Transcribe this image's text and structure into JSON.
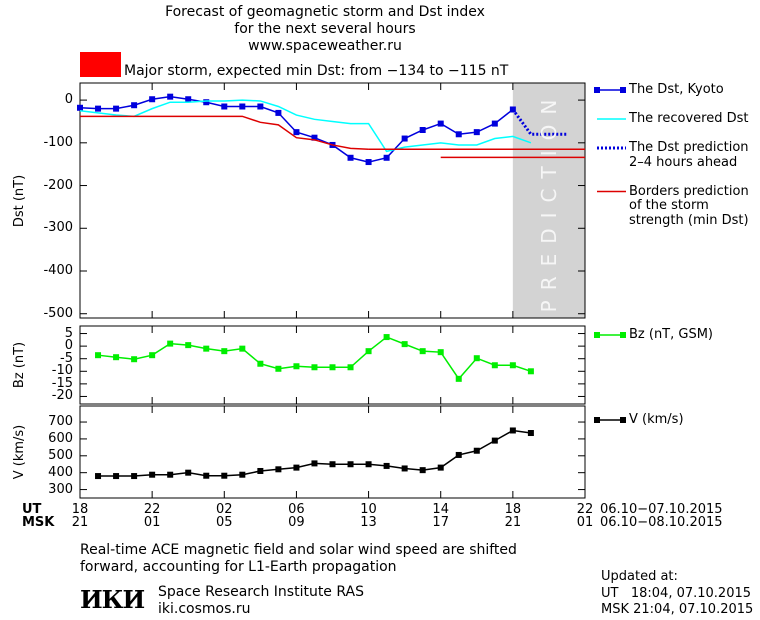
{
  "header": {
    "title_lines": [
      "Forecast of geomagnetic storm and Dst index",
      "for the next several hours",
      "www.spaceweather.ru"
    ]
  },
  "storm_box": {
    "color": "#ff0000",
    "label": "Major storm, expected min Dst: from −134 to −115 nT"
  },
  "chart_data": [
    {
      "type": "line",
      "ylabel": "Dst (nT)",
      "xlim": [
        0,
        28
      ],
      "xticks": [
        0,
        4,
        8,
        12,
        16,
        20,
        24,
        28
      ],
      "ylim": [
        -510,
        40
      ],
      "yticks": [
        0,
        -100,
        -200,
        -300,
        -400,
        -500
      ],
      "prediction": {
        "label": "PREDICTION",
        "range": [
          24,
          28
        ],
        "color": "#d3d3d3"
      },
      "series": [
        {
          "name": "The Dst, Kyoto",
          "color": "#0000dd",
          "marker": "square",
          "x": [
            0,
            1,
            2,
            3,
            4,
            5,
            6,
            7,
            8,
            9,
            10,
            11,
            12,
            13,
            14,
            15,
            16,
            17,
            18,
            19,
            20,
            21,
            22,
            23,
            24
          ],
          "values": [
            -18,
            -20,
            -20,
            -12,
            2,
            8,
            2,
            -5,
            -15,
            -15,
            -15,
            -30,
            -75,
            -88,
            -105,
            -135,
            -145,
            -135,
            -90,
            -70,
            -55,
            -80,
            -75,
            -55,
            -22
          ]
        },
        {
          "name": "The recovered Dst",
          "color": "#00ffff",
          "x": [
            0,
            1,
            2,
            3,
            4,
            5,
            6,
            7,
            8,
            9,
            10,
            11,
            12,
            13,
            14,
            15,
            16,
            17,
            18,
            19,
            20,
            21,
            22,
            23,
            24,
            25
          ],
          "values": [
            -25,
            -30,
            -35,
            -38,
            -20,
            -5,
            -5,
            -2,
            -2,
            0,
            -2,
            -15,
            -35,
            -45,
            -50,
            -55,
            -55,
            -120,
            -110,
            -105,
            -100,
            -105,
            -105,
            -90,
            -85,
            -100
          ]
        },
        {
          "name": "The Dst prediction\n2–4 hours ahead",
          "color": "#0000dd",
          "dash": true,
          "x": [
            24,
            25,
            27
          ],
          "values": [
            -22,
            -80,
            -80
          ]
        },
        {
          "name": "Borders prediction\nof the storm\nstrength (min Dst)",
          "color": "#dd0000",
          "pieces": [
            {
              "x": [
                0,
                9,
                10,
                11,
                12,
                13,
                14,
                15,
                16
              ],
              "values": [
                -38,
                -38,
                -52,
                -58,
                -88,
                -93,
                -105,
                -113,
                -115
              ]
            },
            {
              "x": [
                16,
                28
              ],
              "values": [
                -115,
                -115
              ]
            },
            {
              "x": [
                20,
                28
              ],
              "values": [
                -134,
                -134
              ]
            }
          ]
        }
      ]
    },
    {
      "type": "line",
      "ylabel": "Bz (nT)",
      "xlim": [
        0,
        28
      ],
      "xticks": [
        0,
        4,
        8,
        12,
        16,
        20,
        24,
        28
      ],
      "ylim": [
        -23,
        8
      ],
      "yticks": [
        5,
        0,
        -5,
        -10,
        -15,
        -20
      ],
      "series": [
        {
          "name": "Bz (nT, GSM)",
          "color": "#00ee00",
          "marker": "square",
          "x": [
            1,
            2,
            3,
            4,
            5,
            6,
            7,
            8,
            9,
            10,
            11,
            12,
            13,
            14,
            15,
            16,
            17,
            18,
            19,
            20,
            21,
            22,
            23,
            24,
            25
          ],
          "values": [
            -3.6,
            -4.4,
            -5.2,
            -3.6,
            1,
            0.4,
            -1,
            -2,
            -1,
            -7,
            -9,
            -8,
            -8.4,
            -8.4,
            -8.4,
            -2,
            3.6,
            0.8,
            -2,
            -2.4,
            -13,
            -4.8,
            -7.6,
            -7.6,
            -10
          ]
        }
      ]
    },
    {
      "type": "line",
      "ylabel": "V (km/s)",
      "xlim": [
        0,
        28
      ],
      "xticks": [
        {
          "value": 0,
          "label": "18"
        },
        {
          "value": 4,
          "label": "22"
        },
        {
          "value": 8,
          "label": "02"
        },
        {
          "value": 12,
          "label": "06"
        },
        {
          "value": 16,
          "label": "10"
        },
        {
          "value": 20,
          "label": "14"
        },
        {
          "value": 24,
          "label": "18"
        },
        {
          "value": 28,
          "label": "22"
        }
      ],
      "xticks_msk": [
        {
          "value": 0,
          "label": "21"
        },
        {
          "value": 4,
          "label": "01"
        },
        {
          "value": 8,
          "label": "05"
        },
        {
          "value": 12,
          "label": "09"
        },
        {
          "value": 16,
          "label": "13"
        },
        {
          "value": 20,
          "label": "17"
        },
        {
          "value": 24,
          "label": "21"
        },
        {
          "value": 28,
          "label": "01"
        }
      ],
      "xrow_names": [
        "UT",
        "MSK"
      ],
      "xrow_dates": [
        "06.10−07.10.2015",
        "06.10−08.10.2015"
      ],
      "ylim": [
        250,
        795
      ],
      "yticks": [
        700,
        600,
        500,
        400,
        300
      ],
      "series": [
        {
          "name": "V (km/s)",
          "color": "#000000",
          "marker": "square",
          "x": [
            1,
            2,
            3,
            4,
            5,
            6,
            7,
            8,
            9,
            10,
            11,
            12,
            13,
            14,
            15,
            16,
            17,
            18,
            19,
            20,
            21,
            22,
            23,
            24,
            25
          ],
          "values": [
            380,
            380,
            380,
            388,
            388,
            400,
            382,
            382,
            388,
            410,
            420,
            430,
            455,
            450,
            450,
            450,
            440,
            425,
            415,
            430,
            505,
            530,
            590,
            650,
            635
          ]
        }
      ]
    }
  ],
  "footer": {
    "note_lines": [
      "Real-time ACE magnetic field and solar wind speed are shifted",
      "forward, accounting for L1-Earth propagation"
    ],
    "logo": "ИКИ",
    "institute": "Space Research Institute RAS",
    "site": "iki.cosmos.ru",
    "updated_lines": [
      "Updated at:",
      "UT   18:04, 07.10.2015",
      "MSK 21:04, 07.10.2015"
    ]
  }
}
